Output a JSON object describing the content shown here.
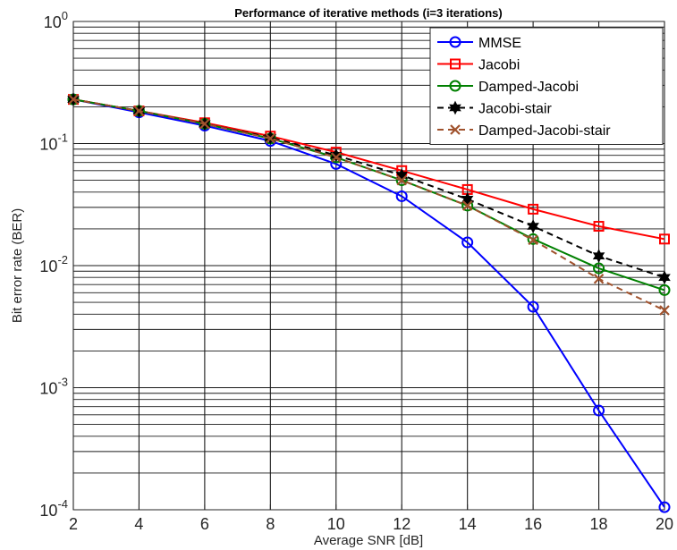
{
  "chart_data": {
    "type": "line",
    "title": "Performance of iterative methods (i=3 iterations)",
    "xlabel": "Average SNR [dB]",
    "ylabel": "Bit error rate (BER)",
    "xlim": [
      2,
      20
    ],
    "ylim": [
      0.0001,
      1
    ],
    "yscale": "log",
    "grid": true,
    "legend_position": "top-right",
    "x": [
      2,
      4,
      6,
      8,
      10,
      12,
      14,
      16,
      18,
      20
    ],
    "x_tick_labels": [
      "2",
      "4",
      "6",
      "8",
      "10",
      "12",
      "14",
      "16",
      "18",
      "20"
    ],
    "y_ticks": [
      {
        "value": 1,
        "base": "10",
        "exp": "0"
      },
      {
        "value": 0.1,
        "base": "10",
        "exp": "-1"
      },
      {
        "value": 0.01,
        "base": "10",
        "exp": "-2"
      },
      {
        "value": 0.001,
        "base": "10",
        "exp": "-3"
      },
      {
        "value": 0.0001,
        "base": "10",
        "exp": "-4"
      }
    ],
    "series": [
      {
        "name": "MMSE",
        "color": "#0000ff",
        "marker": "circle",
        "dash": "solid",
        "values": [
          0.23,
          0.18,
          0.14,
          0.105,
          0.068,
          0.037,
          0.0155,
          0.0046,
          0.00065,
          0.000105
        ]
      },
      {
        "name": "Jacobi",
        "color": "#ff0000",
        "marker": "square",
        "dash": "solid",
        "values": [
          0.23,
          0.185,
          0.148,
          0.115,
          0.085,
          0.06,
          0.042,
          0.029,
          0.021,
          0.0165
        ]
      },
      {
        "name": "Damped-Jacobi",
        "color": "#008000",
        "marker": "circle",
        "dash": "solid",
        "values": [
          0.23,
          0.185,
          0.145,
          0.11,
          0.077,
          0.05,
          0.031,
          0.0165,
          0.0095,
          0.0063
        ]
      },
      {
        "name": "Jacobi-stair",
        "color": "#000000",
        "marker": "hexagram",
        "dash": "dashed",
        "values": [
          0.23,
          0.185,
          0.145,
          0.112,
          0.08,
          0.055,
          0.035,
          0.021,
          0.012,
          0.008
        ]
      },
      {
        "name": "Damped-Jacobi-stair",
        "color": "#a0522d",
        "marker": "x",
        "dash": "dashed",
        "values": [
          0.23,
          0.185,
          0.145,
          0.11,
          0.077,
          0.05,
          0.031,
          0.0162,
          0.0078,
          0.0043
        ]
      }
    ]
  }
}
